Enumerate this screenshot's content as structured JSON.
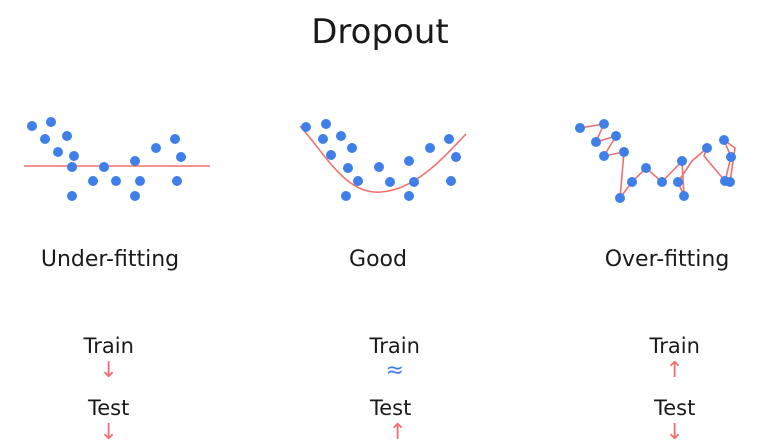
{
  "title": "Dropout",
  "colors": {
    "point": "#3f7fe8",
    "fit_line": "#f0706f",
    "down_arrow": "#f0706f",
    "up_arrow": "#f0706f",
    "approx": "#3f7fe8"
  },
  "panels": [
    {
      "label": "Under-fitting",
      "train_label": "Train",
      "train_symbol": "↓",
      "train_symbol_color": "#f0706f",
      "test_label": "Test",
      "test_symbol": "↓",
      "test_symbol_color": "#f0706f",
      "fit": "flat"
    },
    {
      "label": "Good",
      "train_label": "Train",
      "train_symbol": "≈",
      "train_symbol_color": "#3f7fe8",
      "test_label": "Test",
      "test_symbol": "↑",
      "test_symbol_color": "#f0706f",
      "fit": "curve"
    },
    {
      "label": "Over-fitting",
      "train_label": "Train",
      "train_symbol": "↑",
      "train_symbol_color": "#f0706f",
      "test_label": "Test",
      "test_symbol": "↓",
      "test_symbol_color": "#f0706f",
      "fit": "zigzag"
    }
  ]
}
